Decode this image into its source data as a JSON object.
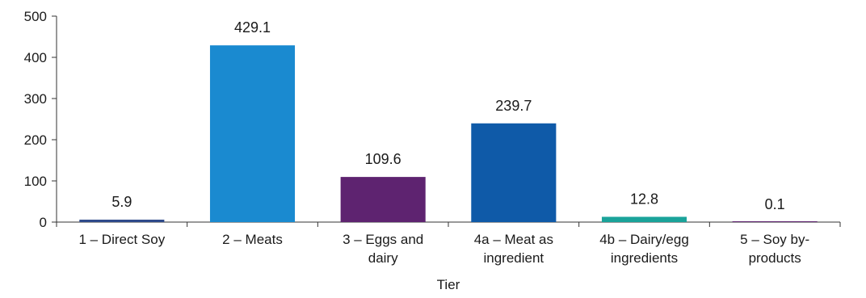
{
  "chart_data": {
    "type": "bar",
    "title": "",
    "xlabel": "Tier",
    "ylabel": "",
    "ylim": [
      0,
      500
    ],
    "yticks": [
      0,
      100,
      200,
      300,
      400,
      500
    ],
    "grid": false,
    "legend": "none",
    "categories": [
      [
        "1 – Direct Soy"
      ],
      [
        "2 – Meats"
      ],
      [
        "3 – Eggs and",
        "dairy"
      ],
      [
        "4a – Meat as",
        "ingredient"
      ],
      [
        "4b – Dairy/egg",
        "ingredients"
      ],
      [
        "5 – Soy by-",
        "products"
      ]
    ],
    "values": [
      5.9,
      429.1,
      109.6,
      239.7,
      12.8,
      0.1
    ],
    "value_labels": [
      "5.9",
      "429.1",
      "109.6",
      "239.7",
      "12.8",
      "0.1"
    ],
    "colors": [
      "#2e4a8a",
      "#1a8ad0",
      "#5e2370",
      "#0f5aa8",
      "#1aa39a",
      "#5e2370"
    ]
  }
}
